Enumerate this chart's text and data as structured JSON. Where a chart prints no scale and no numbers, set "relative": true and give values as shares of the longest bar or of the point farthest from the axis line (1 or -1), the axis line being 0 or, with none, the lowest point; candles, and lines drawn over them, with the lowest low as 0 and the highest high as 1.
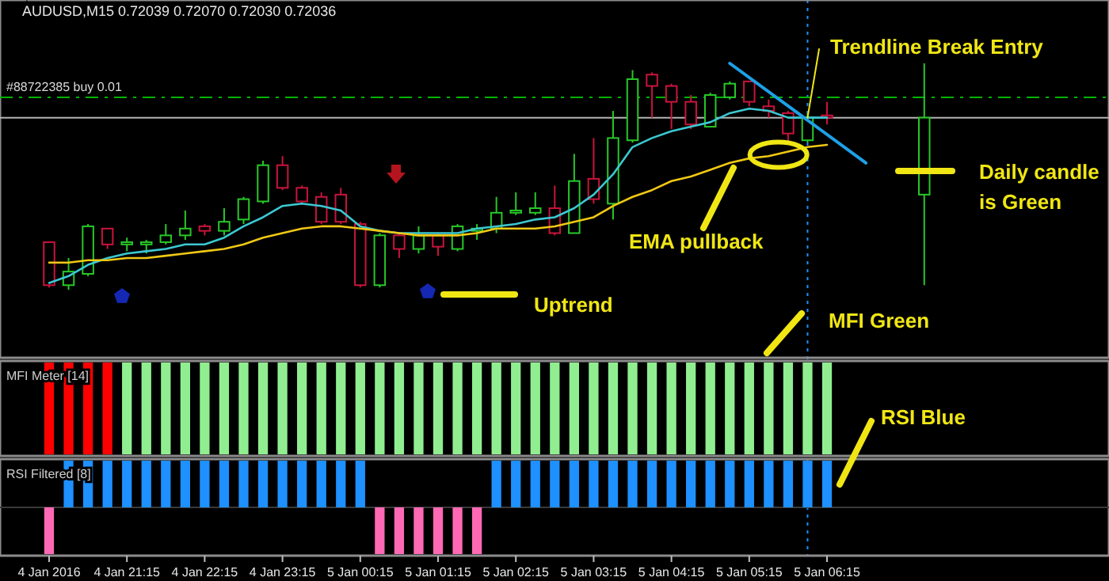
{
  "chart_data": [
    {
      "type": "candlestick",
      "title": "AUDUSD,M15  0.72039 0.72070 0.72030 0.72036",
      "relative": true,
      "tick_labels": false,
      "categories": [
        null,
        null,
        null,
        null,
        null,
        null,
        null,
        null,
        null,
        null,
        null,
        null,
        null,
        null,
        null,
        null,
        null,
        null,
        null,
        null,
        null,
        null,
        null,
        null,
        null,
        null,
        null,
        null,
        null,
        null,
        null,
        null,
        null,
        null,
        null,
        null,
        null,
        null,
        null,
        null,
        null,
        null,
        null,
        null,
        null,
        null
      ],
      "ohlc": [
        [
          0.21,
          0.21,
          0.01,
          0.02
        ],
        [
          0.02,
          0.14,
          0,
          0.08
        ],
        [
          0.07,
          0.29,
          0.06,
          0.28
        ],
        [
          0.27,
          0.27,
          0.18,
          0.2
        ],
        [
          0.2,
          0.23,
          0.17,
          0.21
        ],
        [
          0.2,
          0.22,
          0.16,
          0.21
        ],
        [
          0.21,
          0.29,
          0.2,
          0.24
        ],
        [
          0.24,
          0.35,
          0.22,
          0.27
        ],
        [
          0.28,
          0.29,
          0.24,
          0.26
        ],
        [
          0.26,
          0.36,
          0.24,
          0.3
        ],
        [
          0.31,
          0.41,
          0.29,
          0.4
        ],
        [
          0.39,
          0.57,
          0.38,
          0.55
        ],
        [
          0.55,
          0.59,
          0.44,
          0.45
        ],
        [
          0.45,
          0.46,
          0.38,
          0.39
        ],
        [
          0.41,
          0.43,
          0.29,
          0.3
        ],
        [
          0.42,
          0.45,
          0.29,
          0.3
        ],
        [
          0.29,
          0.3,
          0.01,
          0.02
        ],
        [
          0.02,
          0.25,
          0.01,
          0.24
        ],
        [
          0.24,
          0.25,
          0.14,
          0.18
        ],
        [
          0.18,
          0.28,
          0.16,
          0.24
        ],
        [
          0.24,
          0.25,
          0.15,
          0.19
        ],
        [
          0.18,
          0.29,
          0.17,
          0.28
        ],
        [
          0.26,
          0.29,
          0.22,
          0.27
        ],
        [
          0.27,
          0.41,
          0.25,
          0.34
        ],
        [
          0.34,
          0.43,
          0.33,
          0.35
        ],
        [
          0.34,
          0.43,
          0.33,
          0.36
        ],
        [
          0.36,
          0.46,
          0.24,
          0.25
        ],
        [
          0.25,
          0.6,
          0.25,
          0.48
        ],
        [
          0.49,
          0.67,
          0.38,
          0.4
        ],
        [
          0.38,
          0.79,
          0.31,
          0.67
        ],
        [
          0.66,
          0.97,
          0.65,
          0.93
        ],
        [
          0.95,
          0.96,
          0.76,
          0.9
        ],
        [
          0.9,
          0.91,
          0.71,
          0.83
        ],
        [
          0.83,
          0.86,
          0.71,
          0.73
        ],
        [
          0.72,
          0.87,
          0.72,
          0.86
        ],
        [
          0.85,
          0.92,
          0.84,
          0.91
        ],
        [
          0.92,
          0.92,
          0.81,
          0.83
        ],
        [
          0.81,
          0.84,
          0.76,
          0.79
        ],
        [
          0.78,
          0.79,
          0.64,
          0.69
        ],
        [
          0.66,
          0.78,
          0.65,
          0.76
        ],
        [
          0.77,
          0.83,
          0.73,
          0.76
        ],
        null,
        null,
        null,
        null,
        [
          0.42,
          1,
          0.02,
          0.76
        ]
      ],
      "colors": [
        "#c8143c",
        "#28c828",
        "#28c828",
        "#c8143c",
        "#28c828",
        "#28c828",
        "#28c828",
        "#28c828",
        "#c8143c",
        "#28c828",
        "#28c828",
        "#28c828",
        "#c8143c",
        "#c8143c",
        "#c8143c",
        "#c8143c",
        "#c8143c",
        "#28c828",
        "#c8143c",
        "#28c828",
        "#c8143c",
        "#28c828",
        "#28c828",
        "#28c828",
        "#28c828",
        "#28c828",
        "#c8143c",
        "#28c828",
        "#c8143c",
        "#28c828",
        "#28c828",
        "#c8143c",
        "#c8143c",
        "#c8143c",
        "#28c828",
        "#28c828",
        "#c8143c",
        "#c8143c",
        "#c8143c",
        "#28c828",
        "#c8143c",
        null,
        null,
        null,
        null,
        "#28c828"
      ],
      "series": [
        {
          "type": "line",
          "color": "#3cc8d2",
          "values": [
            0.03,
            0.06,
            0.11,
            0.14,
            0.16,
            0.17,
            0.18,
            0.2,
            0.2,
            0.23,
            0.28,
            0.32,
            0.37,
            0.38,
            0.37,
            0.35,
            0.28,
            0.26,
            0.25,
            0.25,
            0.25,
            0.25,
            0.27,
            0.28,
            0.29,
            0.31,
            0.32,
            0.36,
            0.42,
            0.51,
            0.63,
            0.67,
            0.7,
            0.72,
            0.74,
            0.78,
            0.8,
            0.79,
            0.76,
            0.76,
            0.76,
            null,
            null,
            null,
            null,
            null
          ]
        },
        {
          "type": "line",
          "color": "#f0c814",
          "values": [
            0.12,
            0.12,
            0.13,
            0.13,
            0.14,
            0.14,
            0.15,
            0.16,
            0.17,
            0.18,
            0.2,
            0.23,
            0.25,
            0.27,
            0.28,
            0.28,
            0.27,
            0.26,
            0.25,
            0.24,
            0.24,
            0.24,
            0.25,
            0.27,
            0.27,
            0.27,
            0.28,
            0.3,
            0.32,
            0.37,
            0.41,
            0.44,
            0.48,
            0.5,
            0.53,
            0.56,
            0.58,
            0.59,
            0.61,
            0.63,
            0.64,
            null,
            null,
            null,
            null,
            null
          ]
        },
        {
          "type": "line",
          "color": "#1ea0e6",
          "values": [
            null,
            null,
            null,
            null,
            null,
            null,
            null,
            null,
            null,
            null,
            null,
            null,
            null,
            null,
            null,
            null,
            null,
            null,
            null,
            null,
            null,
            null,
            null,
            null,
            null,
            null,
            null,
            null,
            null,
            null,
            null,
            null,
            null,
            null,
            null,
            1,
            null,
            null,
            null,
            null,
            null,
            null,
            0.56,
            null,
            null,
            null
          ]
        }
      ],
      "ref_lines": [
        {
          "axis": "y",
          "value": 0.85,
          "label": "#88722385 buy 0.01",
          "color": "#00b400",
          "line_style": "dashed"
        },
        {
          "axis": "y",
          "value": 0.76,
          "color": "#b4b4b4",
          "line_style": "solid"
        }
      ],
      "annotations": [
        {
          "text": "Trendline Break Entry",
          "y": 0.76
        },
        "EMA pullback",
        "Uptrend",
        "Daily candle is Green",
        "MFI Green",
        "RSI Blue"
      ]
    },
    {
      "type": "bar",
      "title": "MFI Meter [14]",
      "relative": true,
      "tick_labels": false,
      "categories": [
        null,
        null,
        null,
        null,
        null,
        null,
        null,
        null,
        null,
        null,
        null,
        null,
        null,
        null,
        null,
        null,
        null,
        null,
        null,
        null,
        null,
        null,
        null,
        null,
        null,
        null,
        null,
        null,
        null,
        null,
        null,
        null,
        null,
        null,
        null,
        null,
        null,
        null,
        null,
        null,
        null,
        null,
        null,
        null,
        null,
        null
      ],
      "values": [
        1,
        1,
        1,
        1,
        1,
        1,
        1,
        1,
        1,
        1,
        1,
        1,
        1,
        1,
        1,
        1,
        1,
        1,
        1,
        1,
        1,
        1,
        1,
        1,
        1,
        1,
        1,
        1,
        1,
        1,
        1,
        1,
        1,
        1,
        1,
        1,
        1,
        1,
        1,
        1,
        1,
        null,
        null,
        null,
        null,
        null
      ],
      "colors": [
        "#ff0000",
        "#ff0000",
        "#ff0000",
        "#ff0000",
        "#90ee90",
        "#90ee90",
        "#90ee90",
        "#90ee90",
        "#90ee90",
        "#90ee90",
        "#90ee90",
        "#90ee90",
        "#90ee90",
        "#90ee90",
        "#90ee90",
        "#90ee90",
        "#90ee90",
        "#90ee90",
        "#90ee90",
        "#90ee90",
        "#90ee90",
        "#90ee90",
        "#90ee90",
        "#90ee90",
        "#90ee90",
        "#90ee90",
        "#90ee90",
        "#90ee90",
        "#90ee90",
        "#90ee90",
        "#90ee90",
        "#90ee90",
        "#90ee90",
        "#90ee90",
        "#90ee90",
        "#90ee90",
        "#90ee90",
        "#90ee90",
        "#90ee90",
        "#90ee90",
        "#90ee90",
        null,
        null,
        null,
        null,
        null
      ]
    },
    {
      "type": "bar",
      "title": "RSI Filtered [8]",
      "relative": true,
      "tick_labels": "x",
      "categories": [
        "4 Jan 2016",
        null,
        null,
        null,
        "4 Jan 21:15",
        null,
        null,
        null,
        "4 Jan 22:15",
        null,
        null,
        null,
        "4 Jan 23:15",
        null,
        null,
        null,
        "5 Jan 00:15",
        null,
        null,
        null,
        "5 Jan 01:15",
        null,
        null,
        null,
        "5 Jan 02:15",
        null,
        null,
        null,
        "5 Jan 03:15",
        null,
        null,
        null,
        "5 Jan 04:15",
        null,
        null,
        null,
        "5 Jan 05:15",
        null,
        null,
        null,
        "5 Jan 06:15",
        null,
        null,
        null,
        null,
        null
      ],
      "values": [
        -1,
        1,
        1,
        1,
        1,
        1,
        1,
        1,
        1,
        1,
        1,
        1,
        1,
        1,
        1,
        1,
        1,
        -1,
        -1,
        -1,
        -1,
        -1,
        -1,
        1,
        1,
        1,
        1,
        1,
        1,
        1,
        1,
        1,
        1,
        1,
        1,
        1,
        1,
        1,
        1,
        1,
        1,
        null,
        null,
        null,
        null,
        null
      ],
      "colors": [
        "#ff69b4",
        "#1e90ff",
        "#1e90ff",
        "#1e90ff",
        "#1e90ff",
        "#1e90ff",
        "#1e90ff",
        "#1e90ff",
        "#1e90ff",
        "#1e90ff",
        "#1e90ff",
        "#1e90ff",
        "#1e90ff",
        "#1e90ff",
        "#1e90ff",
        "#1e90ff",
        "#1e90ff",
        "#ff69b4",
        "#ff69b4",
        "#ff69b4",
        "#ff69b4",
        "#ff69b4",
        "#ff69b4",
        "#1e90ff",
        "#1e90ff",
        "#1e90ff",
        "#1e90ff",
        "#1e90ff",
        "#1e90ff",
        "#1e90ff",
        "#1e90ff",
        "#1e90ff",
        "#1e90ff",
        "#1e90ff",
        "#1e90ff",
        "#1e90ff",
        "#1e90ff",
        "#1e90ff",
        "#1e90ff",
        "#1e90ff",
        "#1e90ff",
        null,
        null,
        null,
        null,
        null
      ]
    }
  ]
}
